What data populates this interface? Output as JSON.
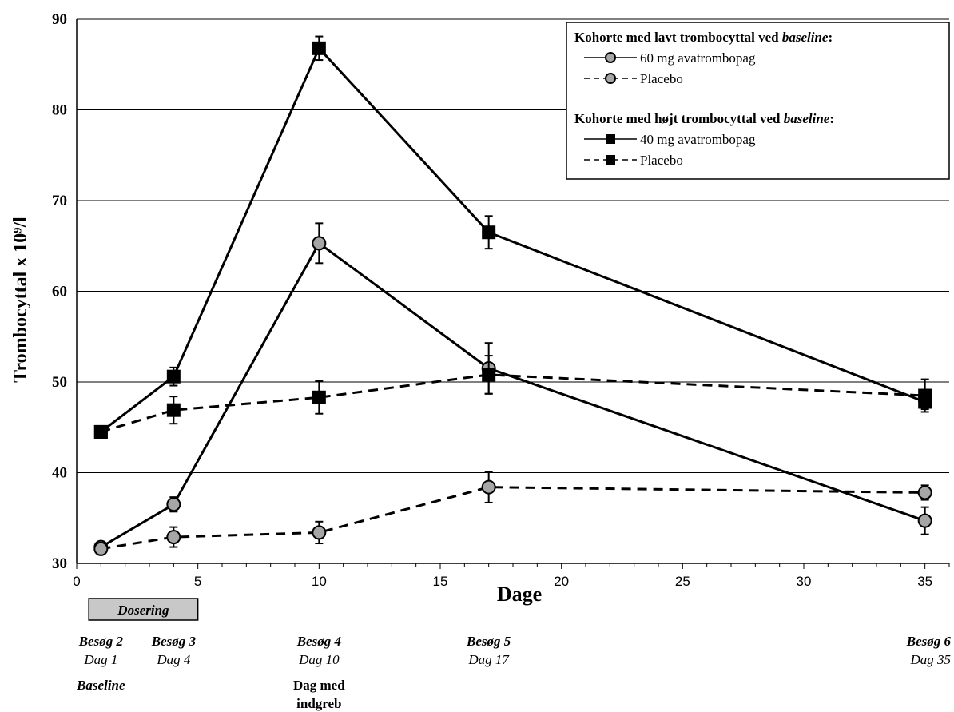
{
  "chart_data": {
    "type": "line",
    "ylabel": "Trombocyttal x 10⁹/l",
    "xlabel": "Dage",
    "xlim": [
      0,
      36
    ],
    "ylim": [
      30,
      90
    ],
    "x_ticks": [
      0,
      5,
      10,
      15,
      20,
      25,
      30,
      35
    ],
    "y_ticks": [
      30,
      40,
      50,
      60,
      70,
      80,
      90
    ],
    "grid": "horizontal",
    "series": [
      {
        "name": "60 mg avatrombopag",
        "cohort": "low",
        "marker": "circle",
        "dash": false,
        "x": [
          1,
          4,
          10,
          17,
          35
        ],
        "y": [
          31.8,
          36.5,
          65.3,
          51.5,
          34.7
        ],
        "err": [
          0.4,
          0.8,
          2.2,
          2.8,
          1.5
        ]
      },
      {
        "name": "Placebo",
        "cohort": "low",
        "marker": "circle",
        "dash": true,
        "x": [
          1,
          4,
          10,
          17,
          35
        ],
        "y": [
          31.6,
          32.9,
          33.4,
          38.4,
          37.8
        ],
        "err": [
          0.3,
          1.1,
          1.2,
          1.7,
          0.8
        ]
      },
      {
        "name": "40 mg avatrombopag",
        "cohort": "high",
        "marker": "square",
        "dash": false,
        "x": [
          1,
          4,
          10,
          17,
          35
        ],
        "y": [
          44.5,
          50.6,
          86.8,
          66.5,
          47.8
        ],
        "err": [
          0.3,
          1.0,
          1.3,
          1.8,
          0.8
        ]
      },
      {
        "name": "Placebo",
        "cohort": "high",
        "marker": "square",
        "dash": true,
        "x": [
          1,
          4,
          10,
          17,
          35
        ],
        "y": [
          44.5,
          46.9,
          48.3,
          50.8,
          48.5
        ],
        "err": [
          0.3,
          1.5,
          1.8,
          2.1,
          1.8
        ]
      }
    ],
    "legend": {
      "position": "top-right",
      "groups": [
        {
          "title": "Kohorte med lavt trombocyttal ved ",
          "title_italic": "baseline",
          "title_end": ":",
          "entries": [
            "60 mg avatrombopag",
            "Placebo"
          ]
        },
        {
          "title": "Kohorte med højt trombocyttal ved ",
          "title_italic": "baseline",
          "title_end": ":",
          "entries": [
            "40 mg avatrombopag",
            "Placebo"
          ]
        }
      ]
    },
    "dosing_box": {
      "label": "Dosering",
      "x_start": 0.5,
      "x_end": 5
    },
    "visits": [
      {
        "x": 1,
        "visit": "Besøg 2",
        "day": "Dag 1",
        "note": "Baseline"
      },
      {
        "x": 4,
        "visit": "Besøg 3",
        "day": "Dag 4",
        "note": ""
      },
      {
        "x": 10,
        "visit": "Besøg 4",
        "day": "Dag 10",
        "note": "Dag med indgreb"
      },
      {
        "x": 17,
        "visit": "Besøg 5",
        "day": "Dag 17",
        "note": ""
      },
      {
        "x": 35,
        "visit": "Besøg 6",
        "day": "Dag 35",
        "note": ""
      }
    ]
  }
}
